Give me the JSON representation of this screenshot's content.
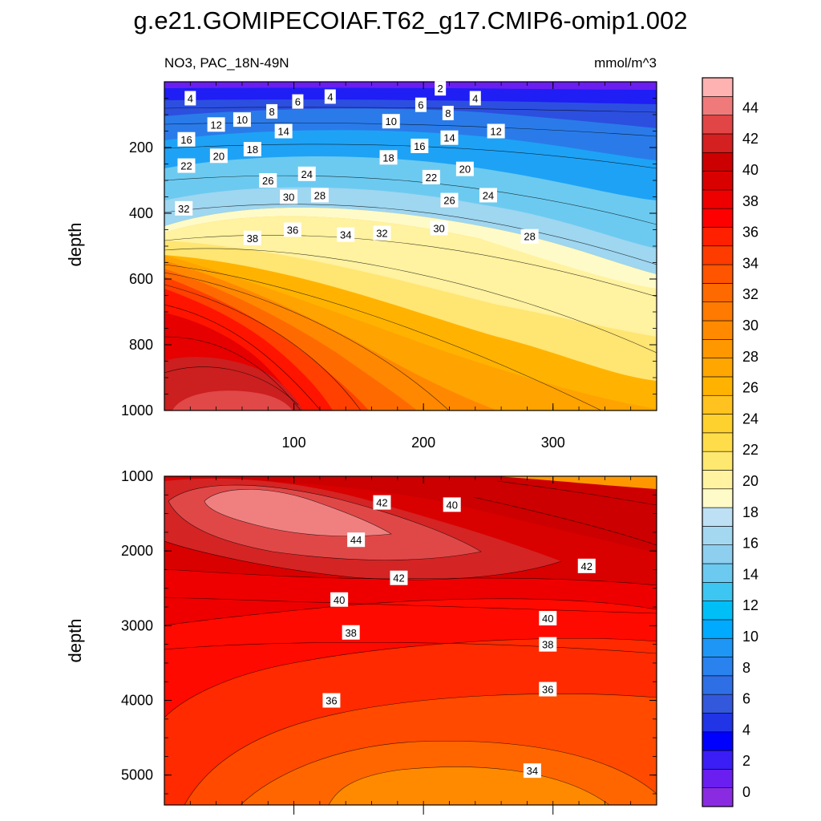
{
  "figure": {
    "title": "g.e21.GOMIPECOIAF.T62_g17.CMIP6-omip1.002",
    "left_subtitle": "NO3, PAC_18N-49N",
    "right_subtitle": "mmol/m^3"
  },
  "colorbar": {
    "tick_labels": [
      "0",
      "2",
      "4",
      "6",
      "8",
      "10",
      "12",
      "14",
      "16",
      "18",
      "20",
      "22",
      "24",
      "26",
      "28",
      "30",
      "32",
      "34",
      "36",
      "38",
      "40",
      "42",
      "44"
    ],
    "colors": [
      "#8a2be2",
      "#6a1ef0",
      "#3a1ef5",
      "#0000ff",
      "#2134e6",
      "#3358dc",
      "#2e6fe6",
      "#2a82ef",
      "#1e96f5",
      "#00aaff",
      "#00bff7",
      "#3dc6f2",
      "#6ccaf0",
      "#8ecff0",
      "#a4d7f0",
      "#bde0f4",
      "#fffbc8",
      "#fff2a0",
      "#ffe870",
      "#ffdd4a",
      "#ffd12e",
      "#ffc21e",
      "#ffb300",
      "#ffa600",
      "#ff9800",
      "#ff8a00",
      "#ff7a00",
      "#ff6a00",
      "#ff5400",
      "#ff3c00",
      "#ff2000",
      "#ff0000",
      "#ee0000",
      "#d90000",
      "#cc0000",
      "#d42020",
      "#e14545",
      "#f07a7a",
      "#ffb2b2"
    ]
  },
  "chart_data": [
    {
      "type": "heatmap",
      "panel": "upper",
      "ylabel": "depth",
      "xlim": [
        0,
        380
      ],
      "ylim": [
        1000,
        0
      ],
      "x_ticks": [
        "100",
        "200",
        "300"
      ],
      "y_ticks": [
        "200",
        "400",
        "600",
        "800",
        "1000"
      ],
      "contour_labels": [
        {
          "text": "2",
          "x": 213,
          "y": 20
        },
        {
          "text": "4",
          "x": 20,
          "y": 50
        },
        {
          "text": "4",
          "x": 128,
          "y": 45
        },
        {
          "text": "4",
          "x": 240,
          "y": 50
        },
        {
          "text": "6",
          "x": 103,
          "y": 60
        },
        {
          "text": "6",
          "x": 198,
          "y": 70
        },
        {
          "text": "8",
          "x": 83,
          "y": 90
        },
        {
          "text": "8",
          "x": 219,
          "y": 95
        },
        {
          "text": "10",
          "x": 60,
          "y": 115
        },
        {
          "text": "10",
          "x": 175,
          "y": 120
        },
        {
          "text": "12",
          "x": 40,
          "y": 130
        },
        {
          "text": "12",
          "x": 256,
          "y": 150
        },
        {
          "text": "14",
          "x": 92,
          "y": 150
        },
        {
          "text": "14",
          "x": 220,
          "y": 170
        },
        {
          "text": "16",
          "x": 17,
          "y": 175
        },
        {
          "text": "16",
          "x": 197,
          "y": 195
        },
        {
          "text": "18",
          "x": 68,
          "y": 205
        },
        {
          "text": "18",
          "x": 173,
          "y": 230
        },
        {
          "text": "20",
          "x": 42,
          "y": 225
        },
        {
          "text": "20",
          "x": 232,
          "y": 265
        },
        {
          "text": "22",
          "x": 17,
          "y": 255
        },
        {
          "text": "22",
          "x": 206,
          "y": 290
        },
        {
          "text": "24",
          "x": 110,
          "y": 280
        },
        {
          "text": "24",
          "x": 250,
          "y": 345
        },
        {
          "text": "26",
          "x": 80,
          "y": 300
        },
        {
          "text": "26",
          "x": 220,
          "y": 360
        },
        {
          "text": "28",
          "x": 120,
          "y": 345
        },
        {
          "text": "28",
          "x": 282,
          "y": 470
        },
        {
          "text": "30",
          "x": 96,
          "y": 350
        },
        {
          "text": "30",
          "x": 212,
          "y": 445
        },
        {
          "text": "32",
          "x": 15,
          "y": 385
        },
        {
          "text": "32",
          "x": 168,
          "y": 460
        },
        {
          "text": "34",
          "x": 140,
          "y": 465
        },
        {
          "text": "36",
          "x": 99,
          "y": 450
        },
        {
          "text": "38",
          "x": 68,
          "y": 475
        }
      ]
    },
    {
      "type": "heatmap",
      "panel": "lower",
      "ylabel": "depth",
      "xlim": [
        0,
        380
      ],
      "ylim": [
        5400,
        1000
      ],
      "y_ticks": [
        "1000",
        "2000",
        "3000",
        "4000",
        "5000"
      ],
      "contour_labels": [
        {
          "text": "42",
          "x": 168,
          "y": 1350
        },
        {
          "text": "40",
          "x": 222,
          "y": 1380
        },
        {
          "text": "44",
          "x": 148,
          "y": 1850
        },
        {
          "text": "42",
          "x": 181,
          "y": 2360
        },
        {
          "text": "42",
          "x": 326,
          "y": 2200
        },
        {
          "text": "40",
          "x": 135,
          "y": 2650
        },
        {
          "text": "40",
          "x": 296,
          "y": 2900
        },
        {
          "text": "38",
          "x": 144,
          "y": 3090
        },
        {
          "text": "38",
          "x": 296,
          "y": 3250
        },
        {
          "text": "36",
          "x": 129,
          "y": 4000
        },
        {
          "text": "36",
          "x": 296,
          "y": 3850
        },
        {
          "text": "34",
          "x": 284,
          "y": 4940
        }
      ]
    }
  ]
}
